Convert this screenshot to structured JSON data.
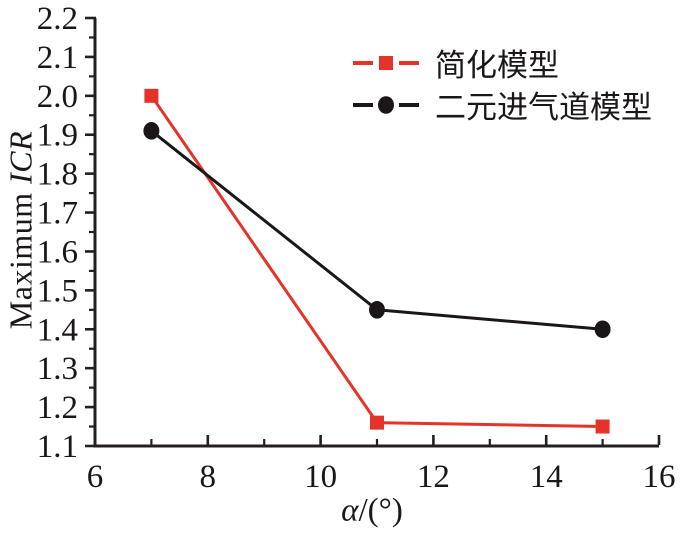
{
  "chart_data": {
    "type": "line",
    "title": "",
    "xlabel_italic": "α",
    "xlabel_rest": "/(°)",
    "ylabel_regular": "Maximum ",
    "ylabel_italic": "ICR",
    "xlim": [
      6,
      16
    ],
    "ylim": [
      1.1,
      2.2
    ],
    "xticks": [
      6,
      8,
      10,
      12,
      14,
      16
    ],
    "xtick_labels": [
      "6",
      "8",
      "10",
      "12",
      "14",
      "16"
    ],
    "x_minor_ticks": [
      7,
      9,
      11,
      13,
      15
    ],
    "yticks": [
      1.1,
      1.2,
      1.3,
      1.4,
      1.5,
      1.6,
      1.7,
      1.8,
      1.9,
      2.0,
      2.1,
      2.2
    ],
    "ytick_labels": [
      "1.1",
      "1.2",
      "1.3",
      "1.4",
      "1.5",
      "1.6",
      "1.7",
      "1.8",
      "1.9",
      "2.0",
      "2.1",
      "2.2"
    ],
    "y_minor_step": 0.05,
    "grid": false,
    "legend_position": "top-right-inside",
    "axis_color": "#231f20",
    "text_color": "#1b1718",
    "background_color": "#ffffff",
    "x": [
      7,
      11,
      15
    ],
    "series": [
      {
        "name": "简化模型",
        "color": "#e63329",
        "marker": "square",
        "values": [
          2.0,
          1.16,
          1.15
        ]
      },
      {
        "name": "二元进气道模型",
        "color": "#1b1718",
        "marker": "circle",
        "values": [
          1.91,
          1.45,
          1.4
        ]
      }
    ]
  }
}
